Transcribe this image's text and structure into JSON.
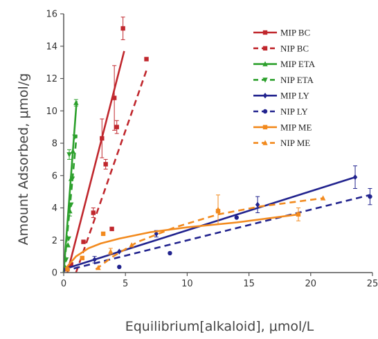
{
  "chart_data": {
    "type": "scatter",
    "title": "",
    "xlabel": "Equilibrium[alkaloid], μmol/L",
    "ylabel": "Amount Adsorbed, μmol/g",
    "xlim": [
      0,
      25
    ],
    "ylim": [
      0,
      16
    ],
    "xticks": [
      0,
      5,
      10,
      15,
      20,
      25
    ],
    "yticks": [
      0,
      2,
      4,
      6,
      8,
      10,
      12,
      14,
      16
    ],
    "legend_position": "top-right",
    "grid": false,
    "series": [
      {
        "name": "MIP BC",
        "color": "#c0272d",
        "dash": "solid",
        "marker": "square",
        "points": [
          [
            0.3,
            0.2
          ],
          [
            1.6,
            1.9
          ],
          [
            3.1,
            8.3
          ],
          [
            4.1,
            10.8
          ],
          [
            4.8,
            15.1
          ]
        ],
        "errors": [
          0,
          0,
          1.2,
          2.0,
          0.7
        ],
        "fit": [
          [
            0.3,
            0.0
          ],
          [
            4.9,
            13.7
          ]
        ]
      },
      {
        "name": "NIP BC",
        "color": "#c0272d",
        "dash": "dashed",
        "marker": "square",
        "points": [
          [
            0.6,
            0.5
          ],
          [
            2.4,
            3.7
          ],
          [
            3.4,
            6.7
          ],
          [
            3.9,
            2.7
          ],
          [
            4.3,
            9.0
          ],
          [
            6.7,
            13.2
          ]
        ],
        "errors": [
          0,
          0.3,
          0.3,
          0,
          0.4,
          0
        ],
        "fit": [
          [
            1.0,
            0.0
          ],
          [
            6.7,
            12.5
          ]
        ]
      },
      {
        "name": "MIP ETA",
        "color": "#2ca02c",
        "dash": "solid",
        "marker": "triangle",
        "points": [
          [
            0.15,
            0.3
          ],
          [
            0.35,
            1.7
          ],
          [
            0.5,
            3.8
          ],
          [
            0.6,
            5.8
          ],
          [
            0.75,
            7.5
          ],
          [
            1.0,
            10.5
          ]
        ],
        "errors": [
          0,
          0,
          0.3,
          0,
          0,
          0.2
        ],
        "fit": [
          [
            0.0,
            0.0
          ],
          [
            1.05,
            10.6
          ]
        ]
      },
      {
        "name": "NIP ETA",
        "color": "#2ca02c",
        "dash": "dashed",
        "marker": "triangle-down",
        "points": [
          [
            0.2,
            0.8
          ],
          [
            0.4,
            2.1
          ],
          [
            0.45,
            7.3
          ],
          [
            0.6,
            4.2
          ],
          [
            0.7,
            5.8
          ],
          [
            0.9,
            8.4
          ]
        ],
        "errors": [
          0,
          0,
          0.3,
          0,
          0,
          0
        ],
        "fit": [
          [
            0.0,
            0.0
          ],
          [
            1.05,
            8.5
          ]
        ]
      },
      {
        "name": "MIP LY",
        "color": "#21238e",
        "dash": "solid",
        "marker": "diamond",
        "points": [
          [
            0.3,
            0.2
          ],
          [
            2.5,
            0.8
          ],
          [
            4.5,
            1.3
          ],
          [
            7.5,
            2.4
          ],
          [
            15.7,
            4.2
          ],
          [
            23.6,
            5.9
          ]
        ],
        "errors": [
          0,
          0.2,
          0,
          0.2,
          0.5,
          0.7
        ],
        "fit": [
          [
            0.0,
            0.2
          ],
          [
            23.6,
            5.9
          ]
        ]
      },
      {
        "name": "NIP LY",
        "color": "#21238e",
        "dash": "dashed",
        "marker": "circle",
        "points": [
          [
            0.3,
            0.2
          ],
          [
            4.5,
            0.35
          ],
          [
            8.6,
            1.2
          ],
          [
            14.0,
            3.4
          ],
          [
            24.8,
            4.7
          ]
        ],
        "errors": [
          0,
          0,
          0,
          0,
          0.5
        ],
        "fit": [
          [
            0.0,
            0.1
          ],
          [
            24.8,
            4.8
          ]
        ]
      },
      {
        "name": "MIP ME",
        "color": "#f28a1e",
        "dash": "solid",
        "marker": "square",
        "points": [
          [
            0.3,
            0.2
          ],
          [
            1.5,
            0.9
          ],
          [
            3.2,
            2.4
          ],
          [
            12.5,
            3.8
          ],
          [
            19.0,
            3.6
          ]
        ],
        "errors": [
          0,
          0,
          0,
          0,
          0.4
        ],
        "fit_curve": "saturation",
        "fit": [
          [
            0.2,
            0.3
          ],
          [
            1.0,
            1.0
          ],
          [
            2.0,
            1.5
          ],
          [
            3.0,
            1.8
          ],
          [
            4.5,
            2.1
          ],
          [
            7.0,
            2.5
          ],
          [
            10.0,
            2.8
          ],
          [
            14.0,
            3.1
          ],
          [
            19.0,
            3.6
          ]
        ]
      },
      {
        "name": "NIP ME",
        "color": "#f28a1e",
        "dash": "dashed",
        "marker": "triangle",
        "points": [
          [
            2.8,
            0.3
          ],
          [
            3.8,
            1.3
          ],
          [
            5.5,
            1.7
          ],
          [
            12.5,
            3.9
          ],
          [
            21.0,
            4.6
          ]
        ],
        "errors": [
          0,
          0.2,
          0,
          0.9,
          0
        ],
        "fit_curve": "saturation",
        "fit": [
          [
            2.6,
            0.2
          ],
          [
            4.0,
            1.0
          ],
          [
            6.0,
            1.9
          ],
          [
            9.0,
            2.8
          ],
          [
            12.5,
            3.6
          ],
          [
            16.0,
            4.1
          ],
          [
            21.0,
            4.6
          ]
        ]
      }
    ]
  }
}
